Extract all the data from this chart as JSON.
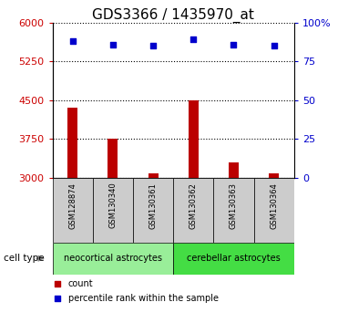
{
  "title": "GDS3366 / 1435970_at",
  "samples": [
    "GSM128874",
    "GSM130340",
    "GSM130361",
    "GSM130362",
    "GSM130363",
    "GSM130364"
  ],
  "counts": [
    4350,
    3760,
    3085,
    4500,
    3300,
    3085
  ],
  "percentiles": [
    88,
    86,
    85,
    89,
    86,
    85
  ],
  "bar_baseline": 3000,
  "ylim_left": [
    3000,
    6000
  ],
  "ylim_right": [
    0,
    100
  ],
  "yticks_left": [
    3000,
    3750,
    4500,
    5250,
    6000
  ],
  "yticks_right": [
    0,
    25,
    50,
    75,
    100
  ],
  "bar_color": "#bb0000",
  "scatter_color": "#0000cc",
  "groups": [
    {
      "label": "neocortical astrocytes",
      "color": "#99ee99",
      "indices": [
        0,
        1,
        2
      ]
    },
    {
      "label": "cerebellar astrocytes",
      "color": "#44dd44",
      "indices": [
        3,
        4,
        5
      ]
    }
  ],
  "cell_type_label": "cell type",
  "legend_count_label": "count",
  "legend_percentile_label": "percentile rank within the sample",
  "tick_label_color_left": "#cc0000",
  "tick_label_color_right": "#0000cc",
  "xlabel_gray_bg": "#cccccc",
  "grid_color": "#000000",
  "title_fontsize": 11,
  "tick_fontsize": 8,
  "bar_width": 0.25
}
